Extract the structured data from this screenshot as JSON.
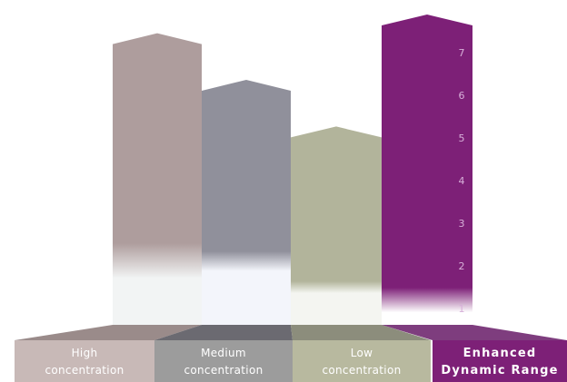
{
  "chart_data": {
    "type": "bar",
    "title": "",
    "xlabel": "",
    "ylabel": "",
    "ylim": [
      0.75,
      7.4
    ],
    "y_ticks": [
      1,
      2,
      3,
      4,
      5,
      6,
      7
    ],
    "categories": [
      {
        "line1": "High",
        "line2": "concentration"
      },
      {
        "line1": "Medium",
        "line2": "concentration"
      },
      {
        "line1": "Low",
        "line2": "concentration"
      },
      {
        "line1": "Enhanced",
        "line2": "Dynamic Range"
      }
    ],
    "values": [
      7.0,
      6.0,
      5.0,
      7.4
    ],
    "colors": [
      "#ae9d9d",
      "#90909b",
      "#b2b49b",
      "#7d2077"
    ],
    "fade_colors": [
      "#f2f4f4",
      "#f3f5fb",
      "#f4f5f1",
      "#ffffff"
    ],
    "label_colors": [
      "#c8b9b7",
      "#9c9c9c",
      "#b8b99f",
      "#7d2077"
    ],
    "ramp_colors": [
      "#9a8b8a",
      "#6b6a71",
      "#8c8d7c",
      "#7e3d7e"
    ]
  }
}
